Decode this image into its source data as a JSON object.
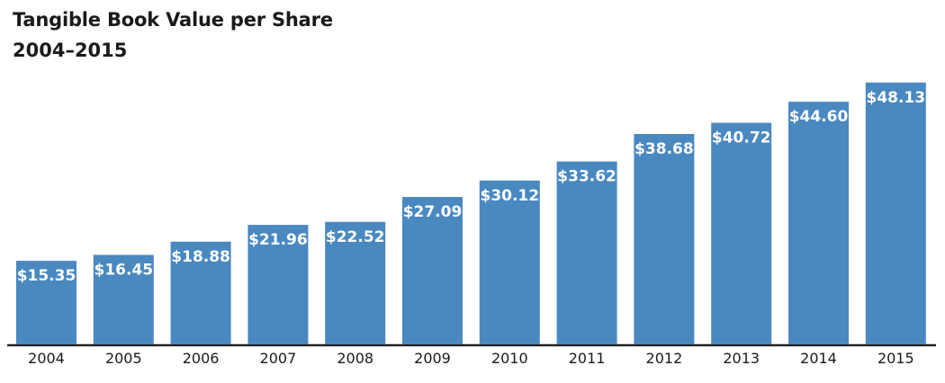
{
  "colors": {
    "bar": "#4a88c0",
    "axis": "#222222",
    "label": "#ffffff",
    "text": "#1a1a1a"
  },
  "chart_data": {
    "type": "bar",
    "title": "Tangible Book Value per Share",
    "subtitle": "2004–2015",
    "xlabel": "",
    "ylabel": "",
    "categories": [
      "2004",
      "2005",
      "2006",
      "2007",
      "2008",
      "2009",
      "2010",
      "2011",
      "2012",
      "2013",
      "2014",
      "2015"
    ],
    "values": [
      15.35,
      16.45,
      18.88,
      21.96,
      22.52,
      27.09,
      30.12,
      33.62,
      38.68,
      40.72,
      44.6,
      48.13
    ],
    "data_labels": [
      "$15.35",
      "$16.45",
      "$18.88",
      "$21.96",
      "$22.52",
      "$27.09",
      "$30.12",
      "$33.62",
      "$38.68",
      "$40.72",
      "$44.60",
      "$48.13"
    ],
    "ylim": [
      0,
      50
    ],
    "grid": false,
    "legend": "none"
  }
}
